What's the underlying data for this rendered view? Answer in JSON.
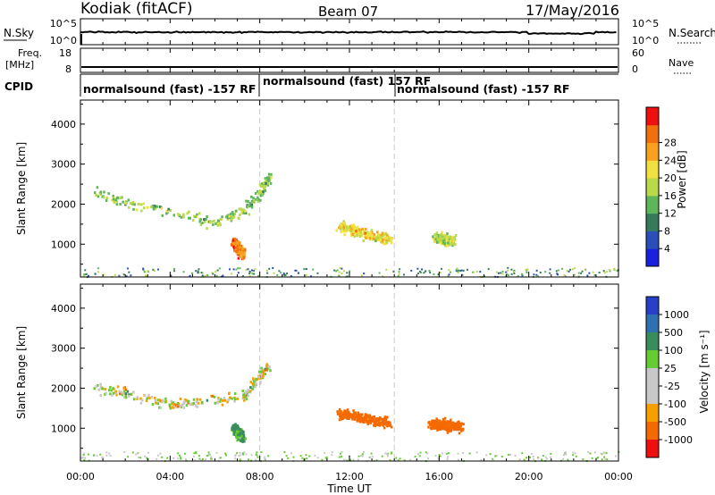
{
  "header": {
    "station": "Kodiak (fitACF)",
    "beam": "Beam 07",
    "date": "17/May/2016"
  },
  "strips": {
    "nsky_label": "N.Sky",
    "nsky_ticks": [
      "10^5",
      "10^0"
    ],
    "nsearch_label": "N.Search",
    "nsearch_ticks": [
      "10^5",
      "10^0"
    ],
    "freq_label": "Freq.",
    "freq_unit": "[MHz]",
    "freq_ticks": [
      "18",
      "8"
    ],
    "nave_label": "Nave",
    "nave_ticks": [
      "60",
      "0"
    ],
    "cpid_label": "CPID",
    "cpid_segments": [
      {
        "start_hour": 0,
        "end_hour": 8,
        "label": "normalsound (fast) -157 RF"
      },
      {
        "start_hour": 8,
        "end_hour": 14,
        "label": "normalsound (fast) 157 RF"
      },
      {
        "start_hour": 14,
        "end_hour": 24,
        "label": "normalsound (fast) -157 RF"
      }
    ]
  },
  "chart_data": [
    {
      "type": "heatmap",
      "panel": "power",
      "ylabel": "Slant Range [km]",
      "xlim": [
        0,
        24
      ],
      "ylim": [
        180,
        4600
      ],
      "yticks": [
        1000,
        2000,
        3000,
        4000
      ],
      "colorbar": {
        "label": "Power [dB]",
        "ticks": [
          "4",
          "8",
          "12",
          "16",
          "20",
          "24",
          "28"
        ],
        "colors": [
          "#1a20e0",
          "#2a4fb8",
          "#357a5c",
          "#5fb65a",
          "#b9d84a",
          "#f0e040",
          "#f8a020",
          "#f07010",
          "#ee1010"
        ]
      },
      "structures": [
        {
          "hours": [
            0.7,
            2.0,
            4.0,
            6.0,
            7.2,
            8.0,
            8.4
          ],
          "range_km": [
            2350,
            2050,
            1820,
            1550,
            1850,
            2300,
            2750
          ],
          "dB": 14
        },
        {
          "hours": [
            6.8,
            7.0,
            7.2
          ],
          "range_km": [
            1100,
            900,
            780
          ],
          "dB": 26
        },
        {
          "hours": [
            11.5,
            12.8,
            13.8
          ],
          "range_km": [
            1500,
            1250,
            1150
          ],
          "dB": 20
        },
        {
          "hours": [
            15.8,
            16.6
          ],
          "range_km": [
            1200,
            1100
          ],
          "dB": 16
        }
      ]
    },
    {
      "type": "heatmap",
      "panel": "velocity",
      "ylabel": "Slant Range [km]",
      "xlabel": "Time UT",
      "xlim": [
        0,
        24
      ],
      "ylim": [
        180,
        4600
      ],
      "xticks": [
        "00:00",
        "04:00",
        "08:00",
        "12:00",
        "16:00",
        "20:00",
        "00:00"
      ],
      "yticks": [
        1000,
        2000,
        3000,
        4000
      ],
      "colorbar": {
        "label": "Velocity [m s⁻¹]",
        "ticks": [
          "1000",
          "500",
          "100",
          "25",
          "-25",
          "-100",
          "-500",
          "-1000"
        ],
        "colors": [
          "#2840c8",
          "#3070b0",
          "#3a8c5c",
          "#66cc33",
          "#c8c8c8",
          "#c8c8c8",
          "#f5a000",
          "#f56a00",
          "#ee1010"
        ]
      },
      "structures": [
        {
          "hours": [
            0.7,
            4.0,
            7.2,
            8.4
          ],
          "range_km": [
            2050,
            1600,
            1800,
            2600
          ],
          "velocity_ms": 0
        },
        {
          "hours": [
            6.8,
            7.2
          ],
          "range_km": [
            1000,
            800
          ],
          "velocity_ms": 150
        },
        {
          "hours": [
            11.5,
            13.8
          ],
          "range_km": [
            1400,
            1150
          ],
          "velocity_ms": -300
        },
        {
          "hours": [
            15.5,
            17.0
          ],
          "range_km": [
            1150,
            1050
          ],
          "velocity_ms": -300
        }
      ]
    }
  ]
}
